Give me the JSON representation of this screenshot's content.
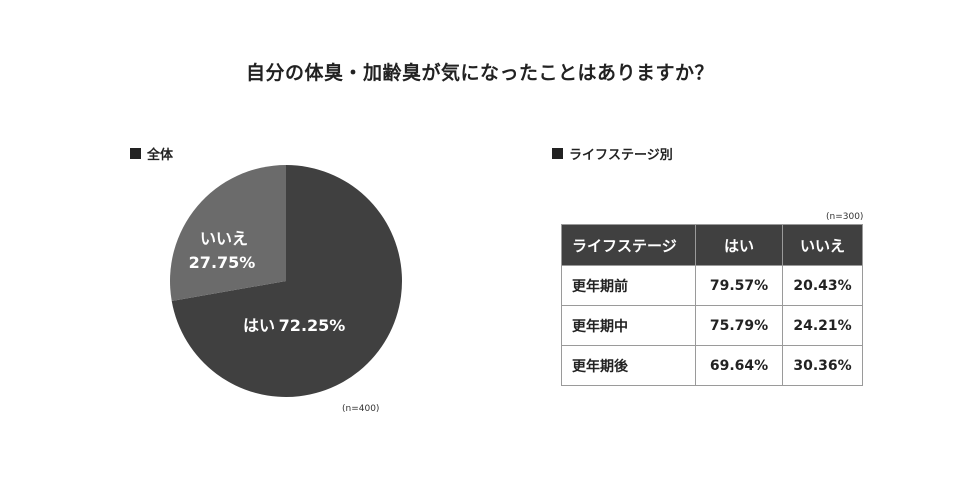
{
  "title": "自分の体臭・加齢臭が気になったことはありますか？",
  "overall_label": "全体",
  "stage_label": "ライフステージ別",
  "overall_n": "(n=400)",
  "stage_n": "(n=300)",
  "colors": {
    "yes": "#404040",
    "no": "#6b6b6b",
    "header_bg": "#404040"
  },
  "chart_data": [
    {
      "type": "pie",
      "title": "全体",
      "slices": [
        {
          "label": "はい",
          "value": 72.25,
          "display": "72.25%",
          "color": "#404040"
        },
        {
          "label": "いいえ",
          "value": 27.75,
          "display": "27.75%",
          "color": "#6b6b6b"
        }
      ],
      "start": "12 o'clock, clockwise"
    },
    {
      "type": "table",
      "title": "ライフステージ別",
      "columns": [
        "ライフステージ",
        "はい",
        "いいえ"
      ],
      "rows": [
        [
          "更年期前",
          "79.57%",
          "20.43%"
        ],
        [
          "更年期中",
          "75.79%",
          "24.21%"
        ],
        [
          "更年期後",
          "69.64%",
          "30.36%"
        ]
      ]
    }
  ]
}
